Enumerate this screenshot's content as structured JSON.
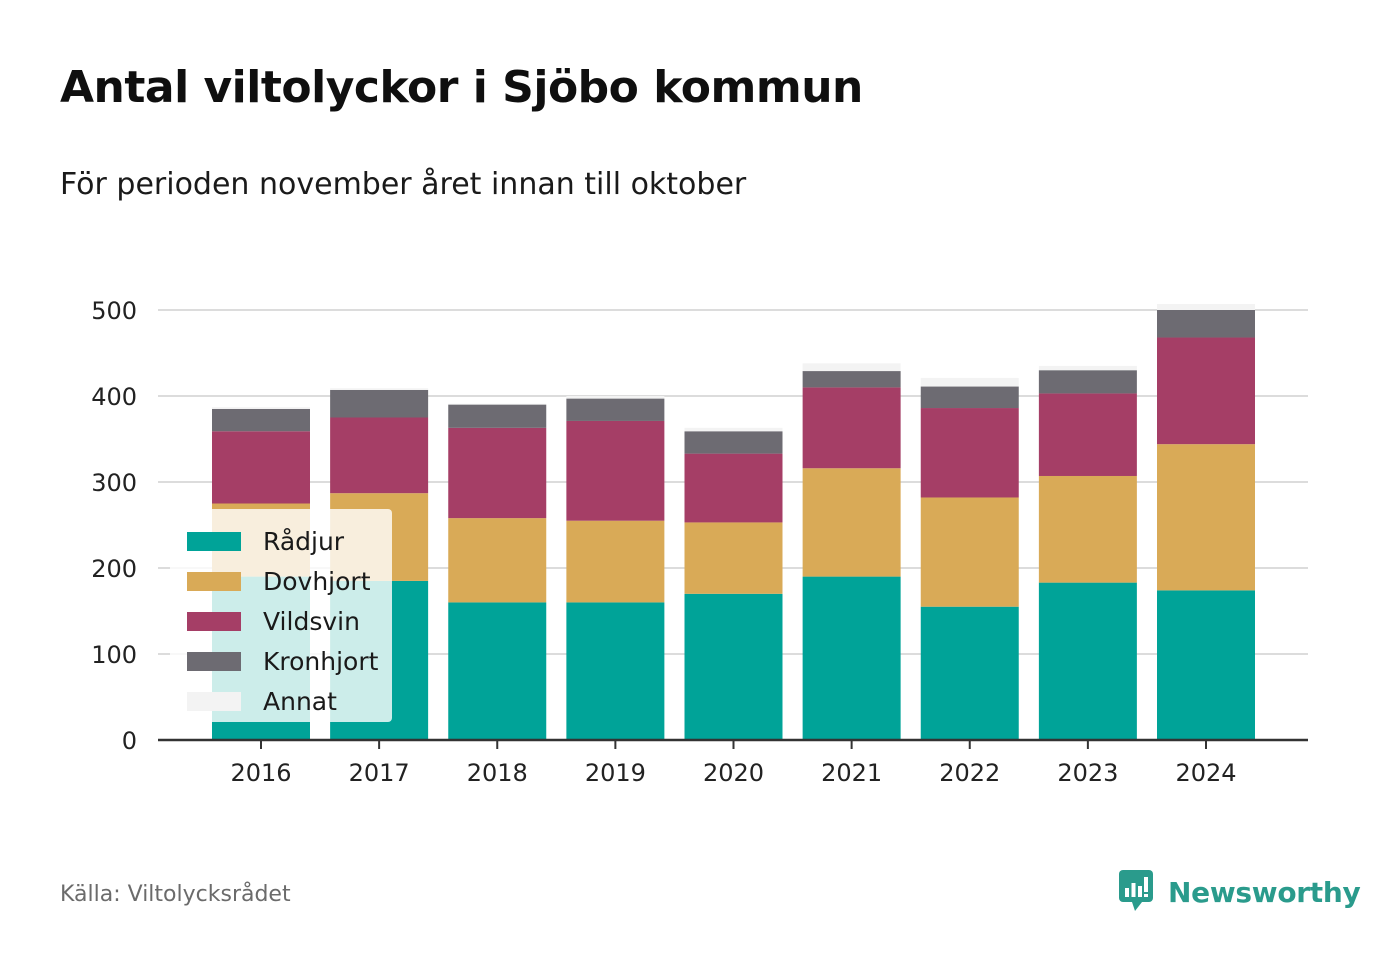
{
  "header": {
    "title": "Antal viltolyckor i Sjöbo kommun",
    "subtitle": "För perioden november året innan till oktober"
  },
  "footer": {
    "source": "Källa: Viltolycksrådet",
    "brand_name": "Newsworthy",
    "brand_color": "#2a9b8c",
    "brand_icon": "bar-chart-speech-bubble-icon"
  },
  "chart_data": {
    "type": "bar",
    "stacked": true,
    "categories": [
      "2016",
      "2017",
      "2018",
      "2019",
      "2020",
      "2021",
      "2022",
      "2023",
      "2024"
    ],
    "series": [
      {
        "name": "Rådjur",
        "color": "#00a398",
        "values": [
          190,
          185,
          160,
          160,
          170,
          190,
          155,
          183,
          174
        ]
      },
      {
        "name": "Dovhjort",
        "color": "#d9aa57",
        "values": [
          85,
          102,
          98,
          95,
          83,
          126,
          127,
          124,
          170
        ]
      },
      {
        "name": "Vildsvin",
        "color": "#a53e66",
        "values": [
          84,
          88,
          105,
          116,
          80,
          94,
          104,
          96,
          124
        ]
      },
      {
        "name": "Kronhjort",
        "color": "#6d6b72",
        "values": [
          26,
          32,
          27,
          26,
          26,
          19,
          25,
          27,
          32
        ]
      },
      {
        "name": "Annat",
        "color": "#f3f3f3",
        "values": [
          2,
          2,
          1,
          3,
          4,
          9,
          10,
          5,
          7
        ]
      }
    ],
    "ylim": [
      0,
      500
    ],
    "yticks": [
      0,
      100,
      200,
      300,
      400,
      500
    ],
    "grid": true,
    "legend_position": "bottom-left, inside plot"
  }
}
